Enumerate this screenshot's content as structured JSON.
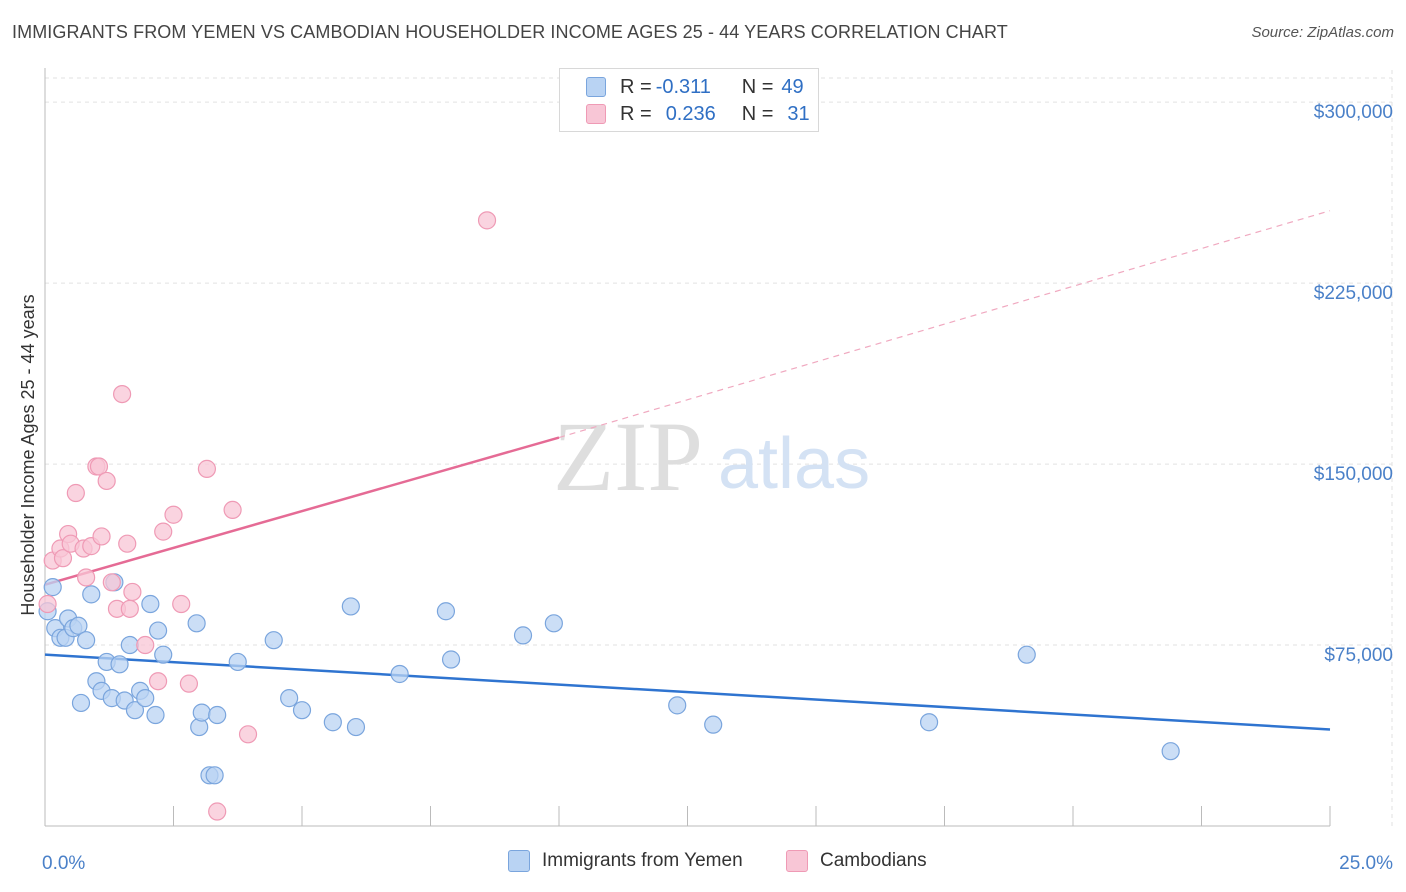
{
  "header": {
    "title": "IMMIGRANTS FROM YEMEN VS CAMBODIAN HOUSEHOLDER INCOME AGES 25 - 44 YEARS CORRELATION CHART",
    "source": "Source: ZipAtlas.com"
  },
  "legend": {
    "row1": {
      "r_label": "R = ",
      "r_value": "-0.311",
      "n_label": "N = ",
      "n_value": "49"
    },
    "row2": {
      "r_label": "R = ",
      "r_value": "0.236",
      "n_label": "N = ",
      "n_value": "31"
    }
  },
  "bottom_legend": {
    "series1": "Immigrants from Yemen",
    "series2": "Cambodians"
  },
  "watermark": {
    "zip": "ZIP",
    "atlas": "atlas"
  },
  "colors": {
    "yemen_fill": "#b9d3f3",
    "yemen_stroke": "#7aa5dd",
    "yemen_line": "#2f74d0",
    "camb_fill": "#f8c6d6",
    "camb_stroke": "#ef9ab5",
    "camb_line": "#e56b95",
    "accent_text": "#4a80c8"
  },
  "chart_data": {
    "type": "scatter",
    "title": "IMMIGRANTS FROM YEMEN VS CAMBODIAN HOUSEHOLDER INCOME AGES 25 - 44 YEARS CORRELATION CHART",
    "xlabel": "",
    "ylabel": "Householder Income Ages 25 - 44 years",
    "xlim": [
      0,
      25
    ],
    "ylim": [
      0,
      310000
    ],
    "x_tick_labels": [
      "0.0%",
      "25.0%"
    ],
    "y_ticks": [
      75000,
      150000,
      225000,
      300000
    ],
    "y_tick_labels": [
      "$75,000",
      "$150,000",
      "$225,000",
      "$300,000"
    ],
    "series": [
      {
        "name": "Immigrants from Yemen",
        "r": -0.311,
        "n": 49,
        "trend": {
          "x0": 0,
          "y0": 71000,
          "x1": 25,
          "y1": 40000
        },
        "points": [
          [
            0.05,
            89000
          ],
          [
            0.15,
            99000
          ],
          [
            0.2,
            82000
          ],
          [
            0.3,
            78000
          ],
          [
            0.4,
            78000
          ],
          [
            0.45,
            86000
          ],
          [
            0.55,
            82000
          ],
          [
            0.65,
            83000
          ],
          [
            0.7,
            51000
          ],
          [
            0.8,
            77000
          ],
          [
            0.9,
            96000
          ],
          [
            1.0,
            60000
          ],
          [
            1.1,
            56000
          ],
          [
            1.2,
            68000
          ],
          [
            1.3,
            53000
          ],
          [
            1.35,
            101000
          ],
          [
            1.45,
            67000
          ],
          [
            1.55,
            52000
          ],
          [
            1.65,
            75000
          ],
          [
            1.75,
            48000
          ],
          [
            1.85,
            56000
          ],
          [
            1.95,
            53000
          ],
          [
            2.05,
            92000
          ],
          [
            2.15,
            46000
          ],
          [
            2.2,
            81000
          ],
          [
            2.3,
            71000
          ],
          [
            2.95,
            84000
          ],
          [
            3.0,
            41000
          ],
          [
            3.05,
            47000
          ],
          [
            3.2,
            21000
          ],
          [
            3.3,
            21000
          ],
          [
            3.35,
            46000
          ],
          [
            3.75,
            68000
          ],
          [
            4.45,
            77000
          ],
          [
            4.75,
            53000
          ],
          [
            5.0,
            48000
          ],
          [
            5.6,
            43000
          ],
          [
            5.95,
            91000
          ],
          [
            6.05,
            41000
          ],
          [
            6.9,
            63000
          ],
          [
            7.8,
            89000
          ],
          [
            7.9,
            69000
          ],
          [
            9.3,
            79000
          ],
          [
            9.9,
            84000
          ],
          [
            12.3,
            50000
          ],
          [
            13.0,
            42000
          ],
          [
            17.2,
            43000
          ],
          [
            19.1,
            71000
          ],
          [
            21.9,
            31000
          ]
        ]
      },
      {
        "name": "Cambodians",
        "r": 0.236,
        "n": 31,
        "trend": {
          "x0": 0,
          "y0": 100000,
          "x1": 10,
          "y1": 161000,
          "dash_to_x": 25,
          "dash_to_y": 255000
        },
        "points": [
          [
            0.05,
            92000
          ],
          [
            0.15,
            110000
          ],
          [
            0.3,
            115000
          ],
          [
            0.35,
            111000
          ],
          [
            0.45,
            121000
          ],
          [
            0.5,
            117000
          ],
          [
            0.6,
            138000
          ],
          [
            0.75,
            115000
          ],
          [
            0.8,
            103000
          ],
          [
            0.9,
            116000
          ],
          [
            1.0,
            149000
          ],
          [
            1.05,
            149000
          ],
          [
            1.1,
            120000
          ],
          [
            1.2,
            143000
          ],
          [
            1.3,
            101000
          ],
          [
            1.4,
            90000
          ],
          [
            1.5,
            179000
          ],
          [
            1.6,
            117000
          ],
          [
            1.65,
            90000
          ],
          [
            1.7,
            97000
          ],
          [
            1.95,
            75000
          ],
          [
            2.2,
            60000
          ],
          [
            2.3,
            122000
          ],
          [
            2.5,
            129000
          ],
          [
            2.65,
            92000
          ],
          [
            2.8,
            59000
          ],
          [
            3.15,
            148000
          ],
          [
            3.35,
            6000
          ],
          [
            3.65,
            131000
          ],
          [
            3.95,
            38000
          ],
          [
            8.6,
            251000
          ]
        ]
      }
    ]
  }
}
